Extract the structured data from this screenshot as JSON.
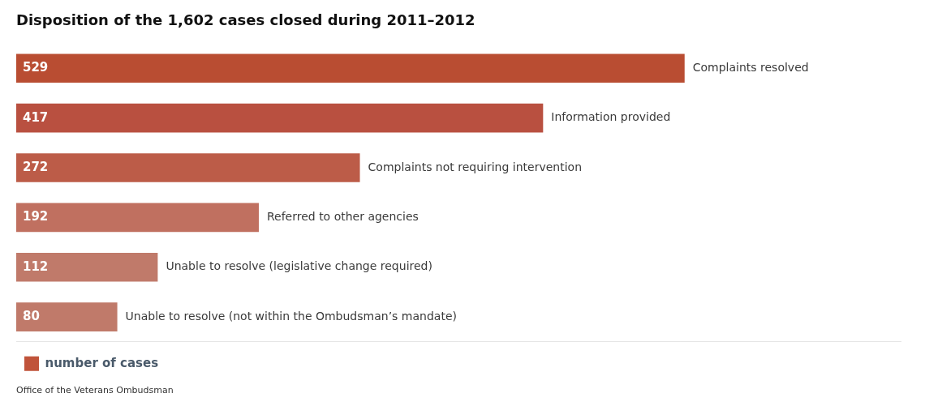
{
  "chart_data": {
    "type": "bar",
    "orientation": "horizontal",
    "title": "Disposition of the 1,602 cases closed during 2011–2012",
    "categories": [
      "Complaints resolved",
      "Information provided",
      "Complaints not requiring intervention",
      "Referred to other agencies",
      "Unable to resolve (legislative change required)",
      "Unable to resolve (not within the Ombudsman’s mandate)"
    ],
    "series": [
      {
        "name": "number of cases",
        "color": "#c0533a",
        "colors": [
          "#b94d32",
          "#b95040",
          "#bc5c48",
          "#c07060",
          "#c07a6a",
          "#c07a6a"
        ],
        "values": [
          529,
          417,
          272,
          192,
          112,
          80
        ]
      }
    ],
    "xlim": [
      0,
      700
    ],
    "grid": false,
    "tick_labels": false,
    "data_labels": true,
    "legend": "bottom",
    "annotations": [
      "Office of the Veterans Ombudsman"
    ]
  }
}
